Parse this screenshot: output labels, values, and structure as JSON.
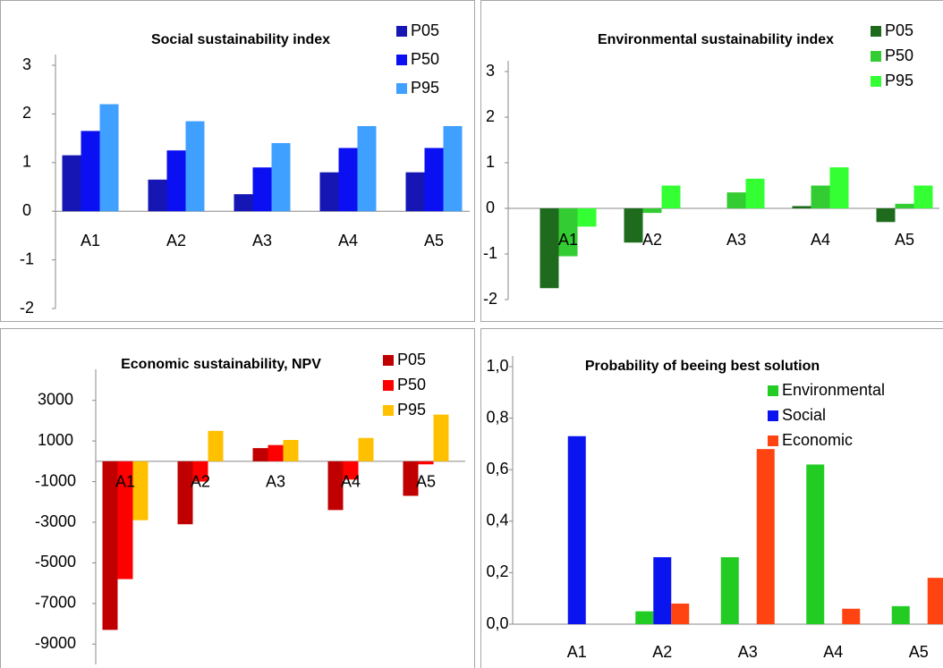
{
  "chart_data": [
    {
      "type": "bar",
      "title": "Social sustainability index",
      "categories": [
        "A1",
        "A2",
        "A3",
        "A4",
        "A5"
      ],
      "series": [
        {
          "name": "P05",
          "color": "#1616b4",
          "values": [
            1.15,
            0.65,
            0.35,
            0.8,
            0.8
          ]
        },
        {
          "name": "P50",
          "color": "#0a10f2",
          "values": [
            1.65,
            1.25,
            0.9,
            1.3,
            1.3
          ]
        },
        {
          "name": "P95",
          "color": "#40a0ff",
          "values": [
            2.2,
            1.85,
            1.4,
            1.75,
            1.75
          ]
        }
      ],
      "ylim": [
        -2,
        3
      ],
      "yticks": [
        -2,
        -1,
        0,
        1,
        2,
        3
      ],
      "legend": "top-right"
    },
    {
      "type": "bar",
      "title": "Environmental sustainability index",
      "categories": [
        "A1",
        "A2",
        "A3",
        "A4",
        "A5"
      ],
      "series": [
        {
          "name": "P05",
          "color": "#1e6b1e",
          "values": [
            -1.75,
            -0.75,
            0,
            0.05,
            -0.3
          ]
        },
        {
          "name": "P50",
          "color": "#33cc33",
          "values": [
            -1.05,
            -0.1,
            0.35,
            0.5,
            0.1
          ]
        },
        {
          "name": "P95",
          "color": "#33ff33",
          "values": [
            -0.4,
            0.5,
            0.65,
            0.9,
            0.5
          ]
        }
      ],
      "ylim": [
        -2,
        3
      ],
      "yticks": [
        -2,
        -1,
        0,
        1,
        2,
        3
      ],
      "legend": "top-right"
    },
    {
      "type": "bar",
      "title": "Economic sustainability, NPV",
      "categories": [
        "A1",
        "A2",
        "A3",
        "A4",
        "A5"
      ],
      "series": [
        {
          "name": "P05",
          "color": "#c00000",
          "values": [
            -8300,
            -3100,
            650,
            -2400,
            -1700
          ]
        },
        {
          "name": "P50",
          "color": "#ff0000",
          "values": [
            -5800,
            -1000,
            800,
            -900,
            -150
          ]
        },
        {
          "name": "P95",
          "color": "#ffc000",
          "values": [
            -2900,
            1500,
            1050,
            1150,
            2300
          ]
        }
      ],
      "ylim": [
        -10000,
        4000
      ],
      "yticks": [
        -9000,
        -7000,
        -5000,
        -3000,
        -1000,
        1000,
        3000
      ],
      "legend": "top-right"
    },
    {
      "type": "bar",
      "title": "Probability of beeing best solution",
      "categories": [
        "A1",
        "A2",
        "A3",
        "A4",
        "A5"
      ],
      "series": [
        {
          "name": "Environmental",
          "color": "#22cc22",
          "values": [
            0,
            0.05,
            0.26,
            0.62,
            0.07
          ]
        },
        {
          "name": "Social",
          "color": "#0a14ee",
          "values": [
            0.73,
            0.26,
            0,
            0,
            0
          ]
        },
        {
          "name": "Economic",
          "color": "#ff4411",
          "values": [
            0,
            0.08,
            0.68,
            0.06,
            0.18
          ]
        }
      ],
      "ylim": [
        0,
        1
      ],
      "yticks": [
        {
          "value": 0,
          "label": "0,0"
        },
        {
          "value": 0.2,
          "label": "0,2"
        },
        {
          "value": 0.4,
          "label": "0,4"
        },
        {
          "value": 0.6,
          "label": "0,6"
        },
        {
          "value": 0.8,
          "label": "0,8"
        },
        {
          "value": 1,
          "label": "1,0"
        }
      ],
      "legend": "top-right"
    }
  ]
}
